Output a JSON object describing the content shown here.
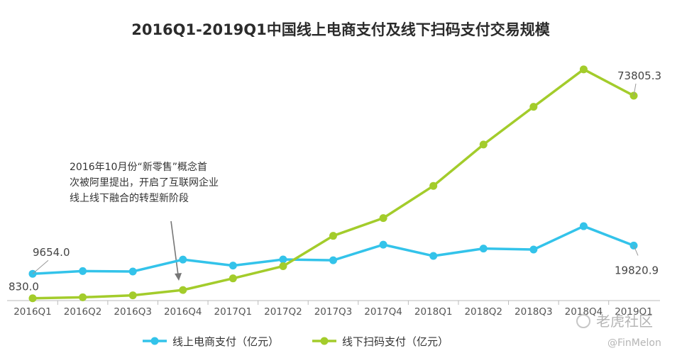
{
  "chart_data": {
    "type": "line",
    "title": "2016Q1-2019Q1中国线上电商支付及线下扫码支付交易规模",
    "categories": [
      "2016Q1",
      "2016Q2",
      "2016Q3",
      "2016Q4",
      "2017Q1",
      "2017Q2",
      "2017Q3",
      "2017Q4",
      "2018Q1",
      "2018Q2",
      "2018Q3",
      "2018Q4",
      "2019Q1"
    ],
    "series": [
      {
        "name": "线上电商支付（亿元）",
        "color": "#33c3ea",
        "values": [
          9654.0,
          10620,
          10480,
          14770,
          12600,
          14800,
          14520,
          20140,
          16080,
          18740,
          18380,
          26800,
          19820.9
        ]
      },
      {
        "name": "线下扫码支付（亿元）",
        "color": "#a3cc2b",
        "values": [
          830.0,
          1180,
          1890,
          3800,
          8000,
          12390,
          23320,
          29720,
          41320,
          56210,
          69810,
          83300,
          73805.3
        ]
      }
    ],
    "data_labels": [
      {
        "series": 0,
        "index": 0,
        "text": "9654.0"
      },
      {
        "series": 1,
        "index": 0,
        "text": "830.0"
      },
      {
        "series": 0,
        "index": 12,
        "text": "19820.9"
      },
      {
        "series": 1,
        "index": 12,
        "text": "73805.3"
      }
    ],
    "annotation": {
      "lines": [
        "2016年10月份“新零售”概念首",
        "次被阿里提出，开启了互联网企业",
        "线上线下融合的转型新阶段"
      ],
      "points_to_index": 3
    },
    "legend_position": "bottom",
    "grid": false,
    "ylim": [
      0,
      95000
    ]
  },
  "watermark": {
    "brand": "老虎社区",
    "handle": "@FinMelon"
  }
}
